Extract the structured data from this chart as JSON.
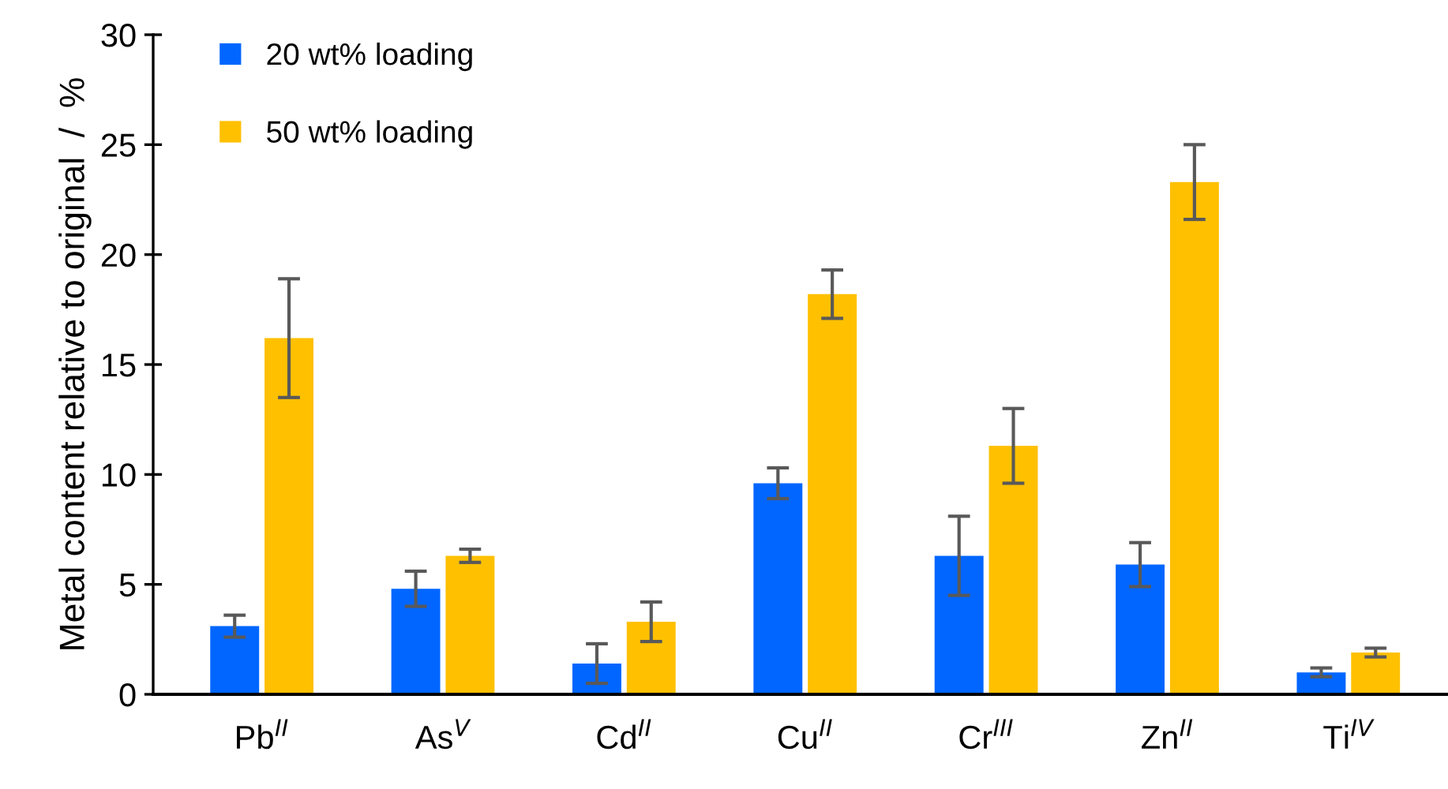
{
  "chart_data": {
    "type": "bar",
    "ylabel": "Metal content relative to original  /  %",
    "categories": [
      "Pb$^{II}$",
      "As$^{V}$",
      "Cd$^{II}$",
      "Cu$^{II}$",
      "Cr$^{III}$",
      "Zn$^{II}$",
      "Ti$^{IV}$"
    ],
    "series": [
      {
        "name": "20 wt% loading",
        "color": "#0066ff",
        "values": [
          3.1,
          4.8,
          1.4,
          9.6,
          6.3,
          5.9,
          1.0
        ],
        "errors": [
          0.5,
          0.8,
          0.9,
          0.7,
          1.8,
          1.0,
          0.2
        ]
      },
      {
        "name": "50 wt% loading",
        "color": "#ffc000",
        "values": [
          16.2,
          6.3,
          3.3,
          18.2,
          11.3,
          23.3,
          1.9
        ],
        "errors": [
          2.7,
          0.3,
          0.9,
          1.1,
          1.7,
          1.7,
          0.2
        ]
      }
    ],
    "ylim": [
      0,
      30
    ],
    "yticks": [
      0,
      5,
      10,
      15,
      20,
      25,
      30
    ],
    "legend": "top left",
    "grid": false
  }
}
